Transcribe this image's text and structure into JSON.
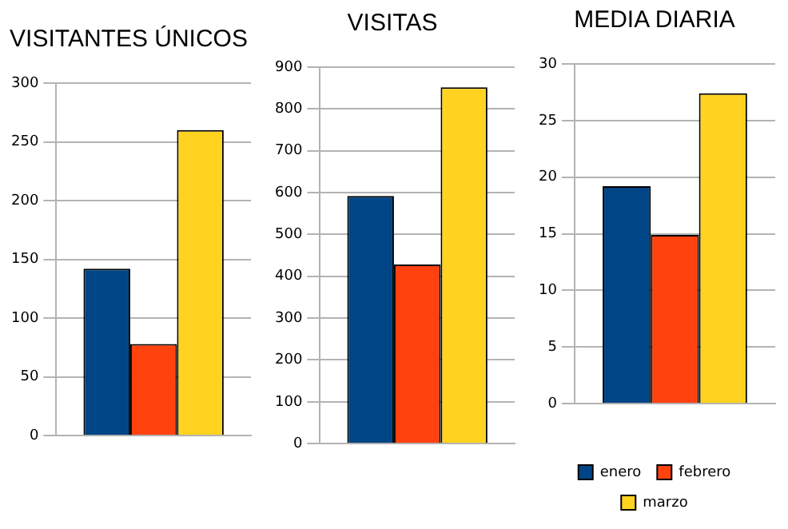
{
  "chart_data": [
    {
      "type": "bar",
      "title": "VISITANTES ÚNICOS",
      "categories": [
        null
      ],
      "series": [
        {
          "color": "#004586",
          "values": [
            142
          ]
        },
        {
          "color": "#ff420e",
          "values": [
            78
          ]
        },
        {
          "color": "#ffd320",
          "values": [
            260
          ]
        }
      ],
      "ylim": [
        0,
        300
      ],
      "yticks": [
        0,
        50,
        100,
        150,
        200,
        250,
        300
      ],
      "grid": "y",
      "legend": false
    },
    {
      "type": "bar",
      "title": "VISITAS",
      "categories": [
        null
      ],
      "series": [
        {
          "color": "#004586",
          "values": [
            592
          ]
        },
        {
          "color": "#ff420e",
          "values": [
            428
          ]
        },
        {
          "color": "#ffd320",
          "values": [
            852
          ]
        }
      ],
      "ylim": [
        0,
        900
      ],
      "yticks": [
        0,
        100,
        200,
        300,
        400,
        500,
        600,
        700,
        800,
        900
      ],
      "grid": "y",
      "legend": false
    },
    {
      "type": "bar",
      "title": "MEDIA DIARIA",
      "categories": [
        null
      ],
      "series": [
        {
          "name": "enero",
          "color": "#004586",
          "values": [
            19.2
          ]
        },
        {
          "name": "febrero",
          "color": "#ff420e",
          "values": [
            14.9
          ]
        },
        {
          "name": "marzo",
          "color": "#ffd320",
          "values": [
            27.4
          ]
        }
      ],
      "ylim": [
        0,
        30
      ],
      "yticks": [
        0,
        5,
        10,
        15,
        20,
        25,
        30
      ],
      "grid": "y",
      "legend": "bottom"
    }
  ]
}
